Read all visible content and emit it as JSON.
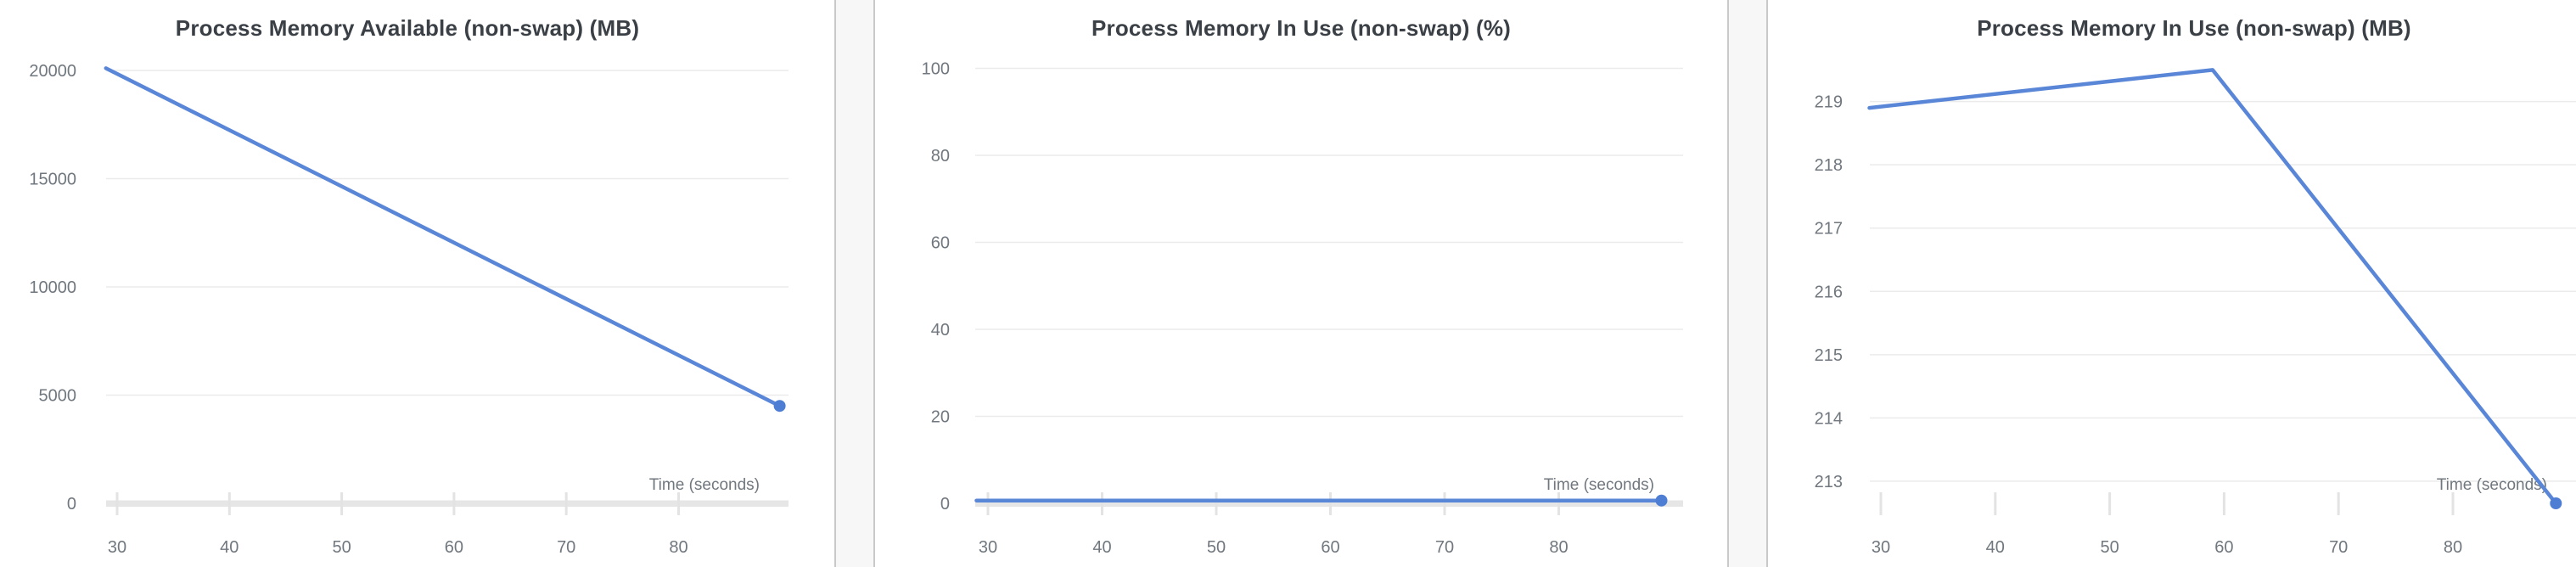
{
  "page": {
    "background_color": "#f7f7f7",
    "card_background": "#ffffff",
    "card_border_color": "#c9c9c9"
  },
  "colors": {
    "line": "#5a86d8",
    "dot": "#4e7dd4",
    "gridline": "#ebebeb",
    "zero_axis_band": "#e6e6e6",
    "tick_mark": "#e3e3e3",
    "tick_label": "#70777e",
    "title": "#3a4046"
  },
  "chart_data": [
    {
      "type": "line",
      "title": "Process Memory Available (non-swap) (MB)",
      "xlabel": "Time (seconds)",
      "ylabel": "",
      "xticks": [
        30,
        40,
        50,
        60,
        70,
        80
      ],
      "yticks": [
        0,
        5000,
        10000,
        15000,
        20000
      ],
      "ylim": [
        0,
        20900
      ],
      "xlim": [
        29,
        89
      ],
      "grid": true,
      "legend": "none",
      "series": [
        {
          "name": "Process Memory Available (non-swap) (MB)",
          "points": [
            [
              29,
              20100
            ],
            [
              59,
              12300
            ],
            [
              89,
              4500
            ]
          ]
        }
      ]
    },
    {
      "type": "line",
      "title": "Process Memory In Use (non-swap) (%)",
      "xlabel": "Time (seconds)",
      "ylabel": "",
      "xticks": [
        30,
        40,
        50,
        60,
        70,
        80
      ],
      "yticks": [
        0,
        20,
        40,
        60,
        80,
        100
      ],
      "ylim": [
        0,
        104
      ],
      "xlim": [
        29,
        89
      ],
      "grid": true,
      "legend": "none",
      "series": [
        {
          "name": "Process Memory In Use (non-swap) (%)",
          "points": [
            [
              29,
              0.65
            ],
            [
              59,
              0.65
            ],
            [
              89,
              0.65
            ]
          ]
        }
      ]
    },
    {
      "type": "line",
      "title": "Process Memory In Use (non-swap) (MB)",
      "xlabel": "Time (seconds)",
      "ylabel": "",
      "xticks": [
        30,
        40,
        50,
        60,
        70,
        80
      ],
      "yticks": [
        213,
        214,
        215,
        216,
        217,
        218,
        219
      ],
      "ylim": [
        212.65,
        219.8
      ],
      "xlim": [
        29,
        89
      ],
      "grid": true,
      "legend": "none",
      "series": [
        {
          "name": "Process Memory In Use (non-swap) (MB)",
          "points": [
            [
              29,
              218.9
            ],
            [
              59,
              219.5
            ],
            [
              89,
              212.65
            ]
          ]
        }
      ]
    }
  ]
}
